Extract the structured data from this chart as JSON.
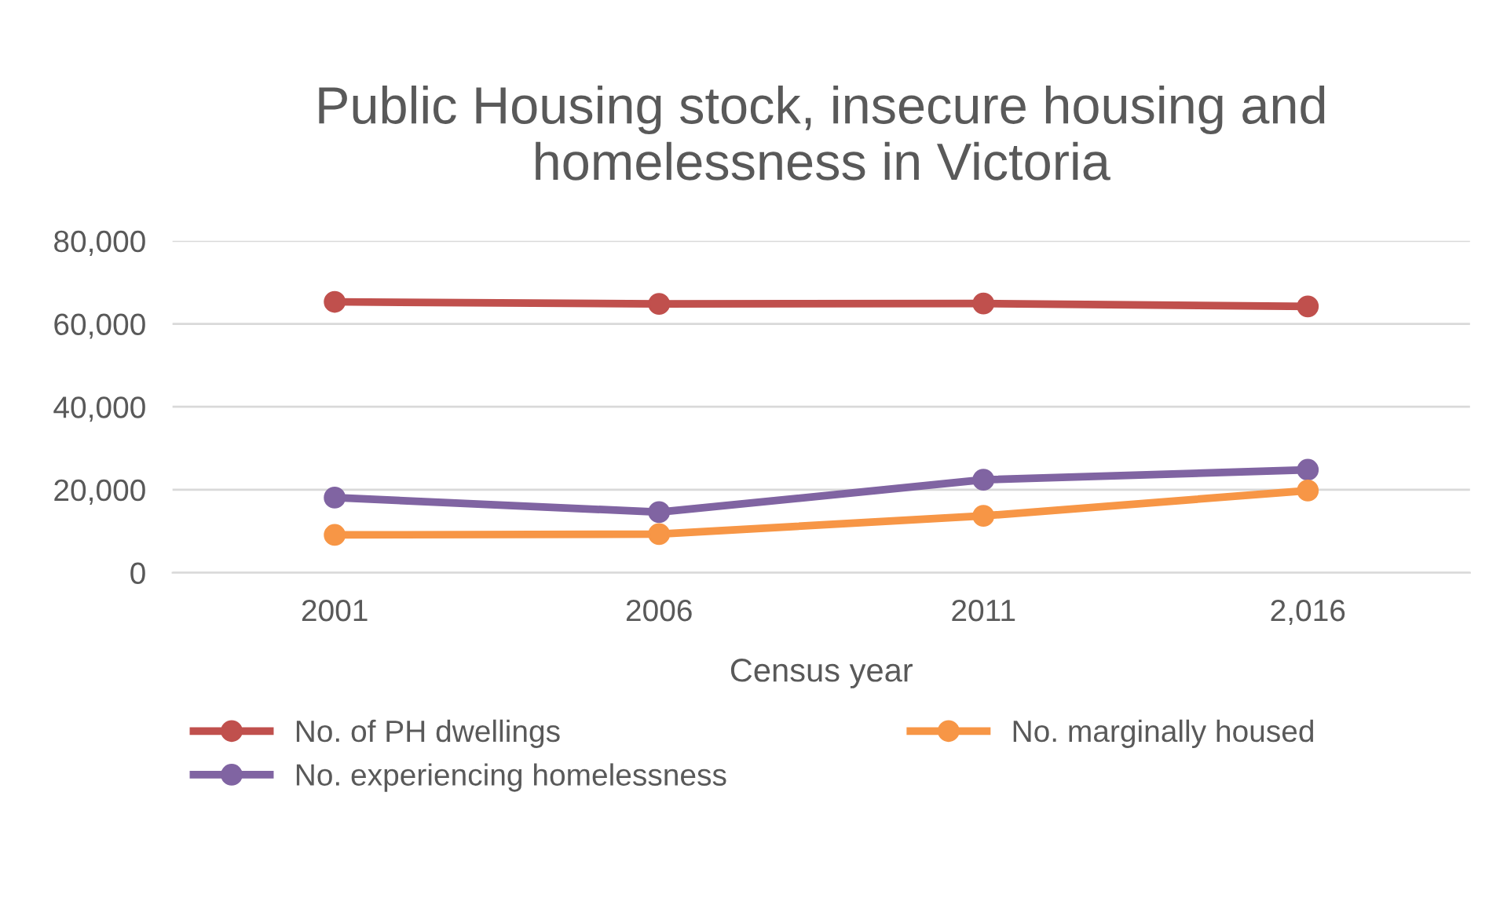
{
  "chart_data": {
    "type": "line",
    "title": "Public Housing stock, insecure housing and\nhomelessness in Victoria",
    "xlabel": "Census year",
    "categories": [
      "2001",
      "2006",
      "2011",
      "2,016"
    ],
    "series": [
      {
        "name": "No. of PH dwellings",
        "color": "#c0504d",
        "values": [
          65300,
          64800,
          64900,
          64200
        ]
      },
      {
        "name": "No. experiencing homelessness",
        "color": "#8064a2",
        "values": [
          18100,
          14600,
          22400,
          24800
        ]
      },
      {
        "name": "No. marginally housed",
        "color": "#f79646",
        "values": [
          9100,
          9300,
          13700,
          19800
        ]
      }
    ],
    "ylim": [
      0,
      80000
    ],
    "yticks": [
      {
        "value": 0,
        "label": "0"
      },
      {
        "value": 20000,
        "label": "20,000"
      },
      {
        "value": 40000,
        "label": "40,000"
      },
      {
        "value": 60000,
        "label": "60,000"
      },
      {
        "value": 80000,
        "label": "80,000"
      }
    ],
    "grid": "y",
    "legend": "bottom",
    "marker": "circle",
    "line_style": "solid"
  }
}
